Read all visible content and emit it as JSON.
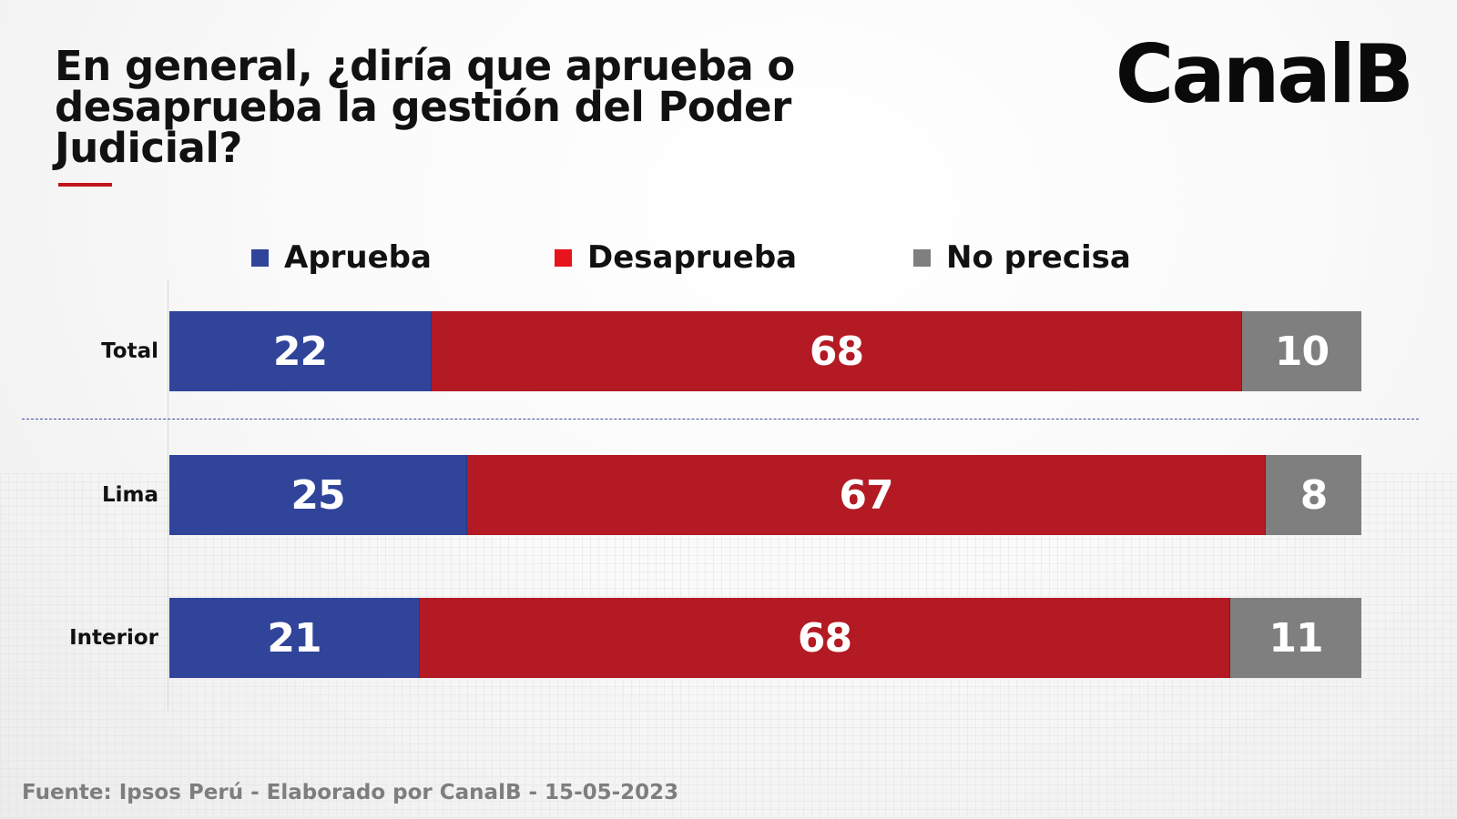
{
  "title": "En general, ¿diría que aprueba o desaprueba la gestión del Poder Judicial?",
  "logo": "CanalB",
  "source": "Fuente: Ipsos Perú - Elaborado por CanalB - 15-05-2023",
  "colors": {
    "aprueba": "#30449a",
    "desaprueba": "#b31a23",
    "no_precisa": "#7f7f7f",
    "legend_aprueba": "#30449a",
    "legend_desaprueba": "#e8141c",
    "legend_no_precisa": "#7f7f7f",
    "accent": "#c1141b"
  },
  "chart_data": {
    "type": "bar",
    "orientation": "horizontal",
    "stacked": true,
    "title": "En general, ¿diría que aprueba o desaprueba la gestión del Poder Judicial?",
    "xlabel": "",
    "ylabel": "",
    "xlim": [
      0,
      100
    ],
    "legend_position": "top",
    "grid": false,
    "categories": [
      "Total",
      "Lima",
      "Interior"
    ],
    "series": [
      {
        "name": "Aprueba",
        "values": [
          22,
          25,
          21
        ]
      },
      {
        "name": "Desaprueba",
        "values": [
          68,
          67,
          68
        ]
      },
      {
        "name": "No precisa",
        "values": [
          10,
          8,
          11
        ]
      }
    ]
  }
}
